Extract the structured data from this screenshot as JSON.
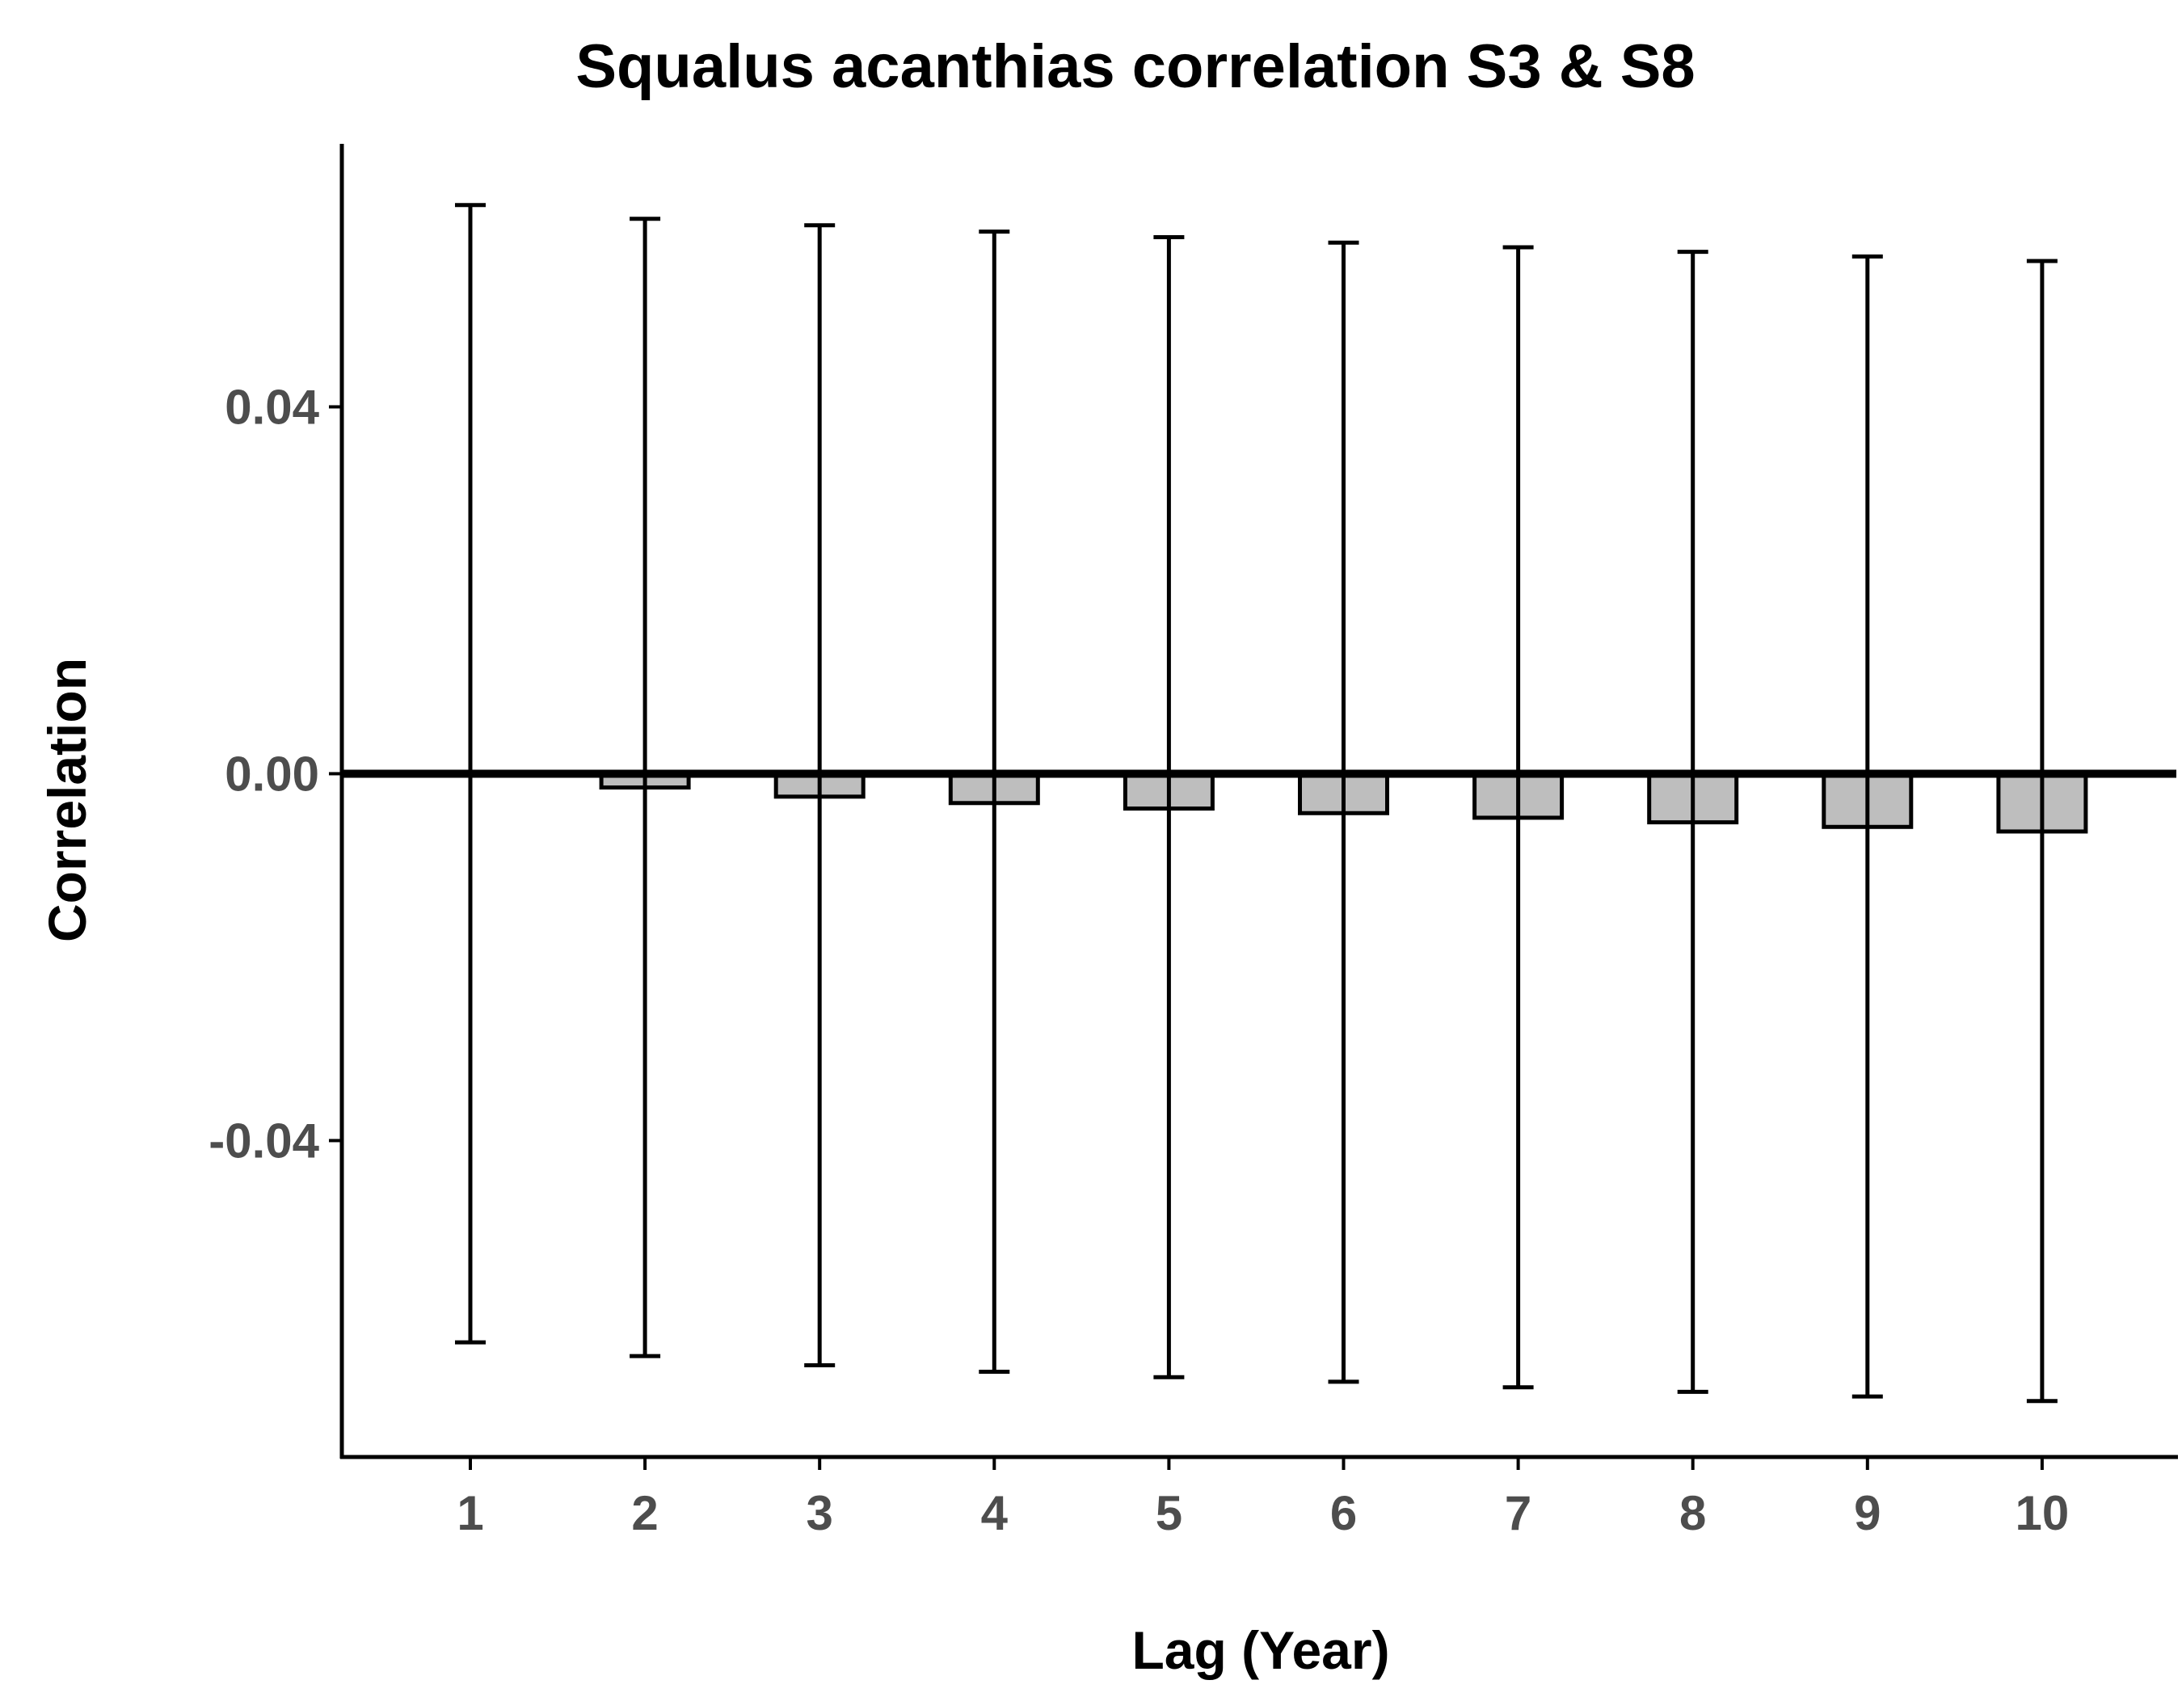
{
  "chart_data": {
    "type": "bar",
    "title": "Squalus acanthias correlation S3 & S8",
    "xlabel": "Lag (Year)",
    "ylabel": "Correlation",
    "categories": [
      "1",
      "2",
      "3",
      "4",
      "5",
      "6",
      "7",
      "8",
      "9",
      "10"
    ],
    "values": [
      0.0,
      -0.0015,
      -0.0025,
      -0.0032,
      -0.0038,
      -0.0043,
      -0.0048,
      -0.0053,
      -0.0058,
      -0.0063
    ],
    "error_upper": [
      0.062,
      0.0605,
      0.0598,
      0.0591,
      0.0585,
      0.0579,
      0.0574,
      0.0569,
      0.0564,
      0.0559
    ],
    "error_lower": [
      -0.062,
      -0.0635,
      -0.0645,
      -0.0652,
      -0.0658,
      -0.0663,
      -0.0669,
      -0.0674,
      -0.0679,
      -0.0684
    ],
    "y_ticks": [
      "0.04",
      "0.00",
      "-0.04"
    ],
    "y_tick_values": [
      0.04,
      0.0,
      -0.04
    ],
    "ylim": [
      -0.0745,
      0.0685
    ],
    "reference_line_y": 0.0,
    "bar_fill": "#bebebe",
    "bar_stroke": "#000000",
    "grid": false,
    "legend": false
  }
}
